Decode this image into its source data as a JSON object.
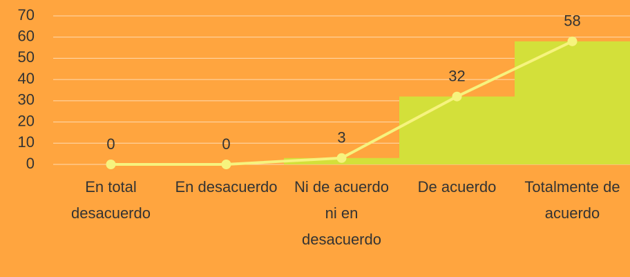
{
  "chart_data": {
    "type": "bar_line",
    "categories": [
      "En total desacuerdo",
      "En desacuerdo",
      "Ni de acuerdo ni en desacuerdo",
      "De acuerdo",
      "Totalmente de acuerdo"
    ],
    "values": [
      0,
      0,
      3,
      32,
      58
    ],
    "bar_color": "#d3e03a",
    "line_color": "#f6f37e",
    "ylim": [
      0,
      70
    ],
    "yticks": [
      0,
      10,
      20,
      30,
      40,
      50,
      60,
      70
    ],
    "grid": true
  }
}
